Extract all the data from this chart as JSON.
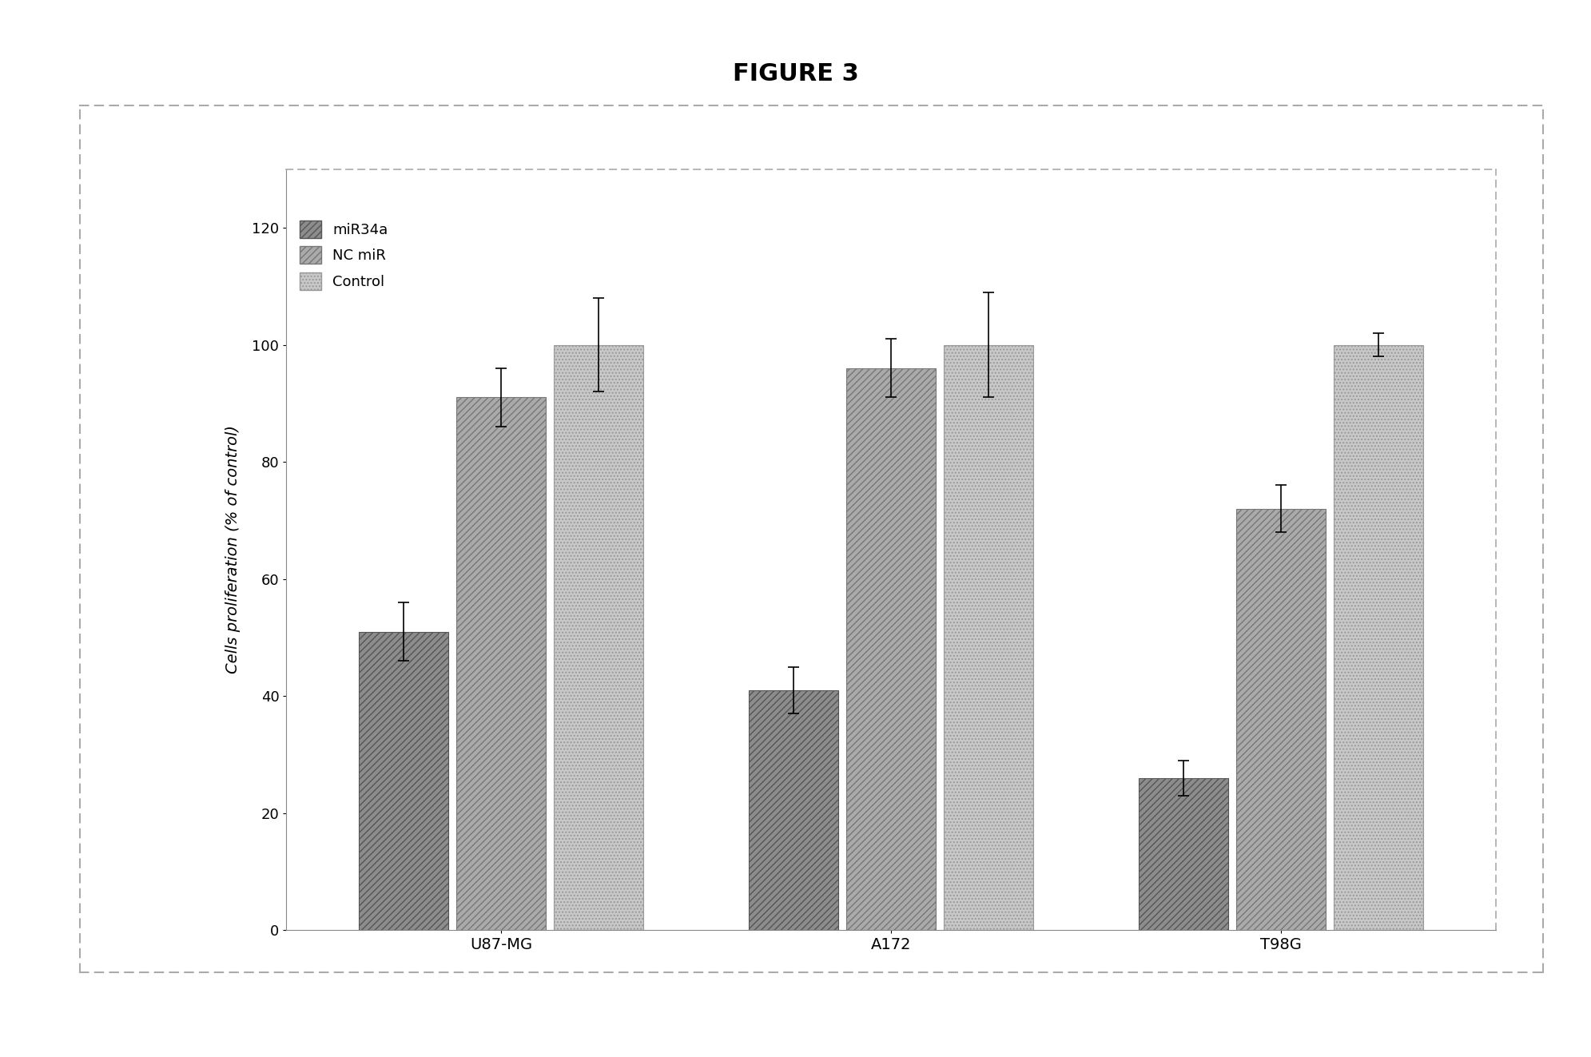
{
  "title": "FIGURE 3",
  "ylabel": "Cells proliferation (% of control)",
  "groups": [
    "U87-MG",
    "A172",
    "T98G"
  ],
  "series": [
    "miR34a",
    "NC miR",
    "Control"
  ],
  "values_by_group": [
    [
      51,
      91,
      100
    ],
    [
      41,
      96,
      100
    ],
    [
      26,
      72,
      100
    ]
  ],
  "errors_by_group": [
    [
      5,
      5,
      8
    ],
    [
      4,
      5,
      9
    ],
    [
      3,
      4,
      2
    ]
  ],
  "ylim": [
    0,
    130
  ],
  "yticks": [
    0,
    20,
    40,
    60,
    80,
    100,
    120
  ],
  "bar_width": 0.25,
  "bar_colors": [
    "#8c8c8c",
    "#aaaaaa",
    "#c8c8c8"
  ],
  "bar_hatches": [
    "////",
    "////",
    "...."
  ],
  "bar_edgecolors": [
    "#555555",
    "#777777",
    "#999999"
  ],
  "legend_loc": "upper left",
  "legend_fontsize": 13,
  "title_fontsize": 22,
  "ylabel_fontsize": 14,
  "tick_fontsize": 13,
  "xtick_fontsize": 14
}
